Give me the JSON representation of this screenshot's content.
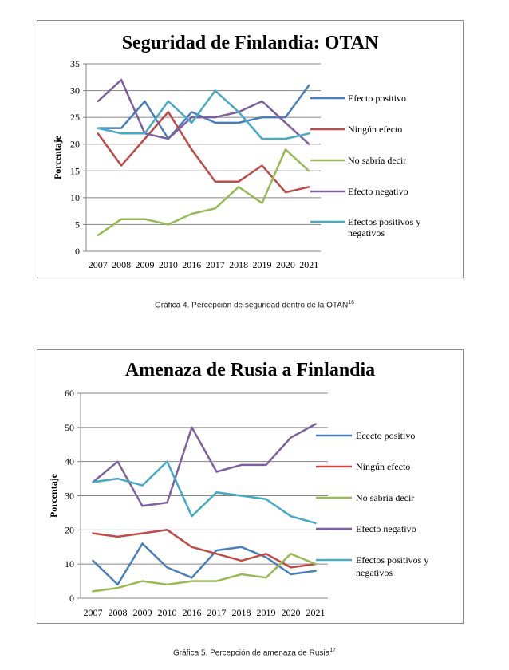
{
  "chart_data": [
    {
      "type": "line",
      "title": "Seguridad de Finlandia: OTAN",
      "ylabel": "Porcentaje",
      "xlabel": "",
      "ylim": [
        0,
        35
      ],
      "yticks": [
        0,
        5,
        10,
        15,
        20,
        25,
        30,
        35
      ],
      "grid": true,
      "legend_position": "right",
      "x": [
        "2007",
        "2008",
        "2009",
        "2010",
        "2016",
        "2017",
        "2018",
        "2019",
        "2020",
        "2021"
      ],
      "series": [
        {
          "name": "Efecto positivo",
          "color": "#4a7ebb",
          "values": [
            23,
            23,
            28,
            21,
            26,
            24,
            24,
            25,
            25,
            31
          ]
        },
        {
          "name": "Ningún efecto",
          "color": "#be4b48",
          "values": [
            22,
            16,
            21,
            26,
            19,
            13,
            13,
            16,
            11,
            12
          ]
        },
        {
          "name": "No sabría decir",
          "color": "#98b954",
          "values": [
            3,
            6,
            6,
            5,
            7,
            8,
            12,
            9,
            19,
            15
          ]
        },
        {
          "name": "Efecto negativo",
          "color": "#7d60a0",
          "values": [
            28,
            32,
            22,
            21,
            25,
            25,
            26,
            28,
            24,
            20
          ]
        },
        {
          "name": "Efectos positivos y negativos",
          "color": "#46aac5",
          "values": [
            23,
            22,
            22,
            28,
            24,
            30,
            26,
            21,
            21,
            22
          ]
        }
      ],
      "legend_lines": [
        [
          "Efecto positivo"
        ],
        [
          "Ningún efecto"
        ],
        [
          "No sabría decir"
        ],
        [
          "Efecto negativo"
        ],
        [
          "Efectos positivos y",
          "negativos"
        ]
      ]
    },
    {
      "type": "line",
      "title": "Amenaza de Rusia a Finlandia",
      "ylabel": "Porcentaje",
      "xlabel": "",
      "ylim": [
        0,
        60
      ],
      "yticks": [
        0,
        10,
        20,
        30,
        40,
        50,
        60
      ],
      "grid": true,
      "legend_position": "right",
      "x": [
        "2007",
        "2008",
        "2009",
        "2010",
        "2016",
        "2017",
        "2018",
        "2019",
        "2020",
        "2021"
      ],
      "series": [
        {
          "name": "Ececto positivo",
          "color": "#4a7ebb",
          "values": [
            11,
            4,
            16,
            9,
            6,
            14,
            15,
            12,
            7,
            8
          ]
        },
        {
          "name": "Ningún efecto",
          "color": "#be4b48",
          "values": [
            19,
            18,
            19,
            20,
            15,
            13,
            11,
            13,
            9,
            10
          ]
        },
        {
          "name": "No sabría decir",
          "color": "#98b954",
          "values": [
            2,
            3,
            5,
            4,
            5,
            5,
            7,
            6,
            13,
            10
          ]
        },
        {
          "name": "Efecto negativo",
          "color": "#7d60a0",
          "values": [
            34,
            40,
            27,
            28,
            50,
            37,
            39,
            39,
            47,
            51
          ]
        },
        {
          "name": "Efectos positivos y negativos",
          "color": "#46aac5",
          "values": [
            34,
            35,
            33,
            40,
            24,
            31,
            30,
            29,
            24,
            22
          ]
        }
      ],
      "legend_lines": [
        [
          "Ececto positivo"
        ],
        [
          "Ningún efecto"
        ],
        [
          "No sabría decir"
        ],
        [
          "Efecto negativo"
        ],
        [
          "Efectos positivos y",
          "negativos"
        ]
      ]
    }
  ],
  "captions": [
    {
      "text": "Gráfica 4. Percepción de seguridad dentro de la OTAN",
      "note": "16"
    },
    {
      "text": "Gráfica 5. Percepción de amenaza de Rusia",
      "note": "17"
    }
  ]
}
